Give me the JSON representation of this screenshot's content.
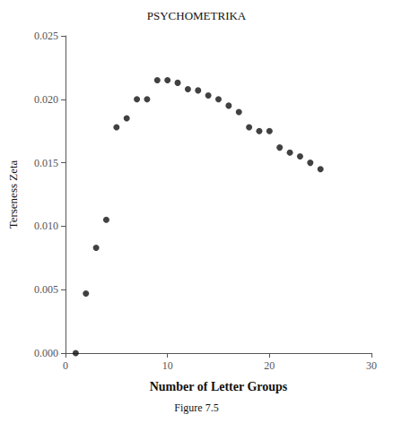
{
  "chart_data": {
    "type": "scatter",
    "title": "PSYCHOMETRIKA",
    "caption": "Figure 7.5",
    "xlabel": "Number of Letter Groups",
    "ylabel": "Terseness Zeta",
    "x": [
      1,
      2,
      3,
      4,
      5,
      6,
      7,
      8,
      9,
      10,
      11,
      12,
      13,
      14,
      15,
      16,
      17,
      18,
      19,
      20,
      21,
      22,
      23,
      24,
      25
    ],
    "values": [
      0.0,
      0.0047,
      0.0083,
      0.0105,
      0.0178,
      0.0185,
      0.02,
      0.02,
      0.0215,
      0.0215,
      0.0213,
      0.0208,
      0.0207,
      0.0203,
      0.02,
      0.0195,
      0.019,
      0.0178,
      0.0175,
      0.0175,
      0.0162,
      0.0158,
      0.0155,
      0.015,
      0.0145
    ],
    "color": "#111111",
    "xlim": [
      0,
      30
    ],
    "ylim": [
      0,
      0.025
    ],
    "xticks": [
      0,
      10,
      20,
      30
    ],
    "yticks": [
      {
        "value": 0,
        "label": "0.000"
      },
      {
        "value": 0.005,
        "label": "0.005"
      },
      {
        "value": 0.01,
        "label": "0.010"
      },
      {
        "value": 0.015,
        "label": "0.015"
      },
      {
        "value": 0.02,
        "label": "0.020"
      },
      {
        "value": 0.025,
        "label": "0.025"
      }
    ],
    "grid": false
  }
}
